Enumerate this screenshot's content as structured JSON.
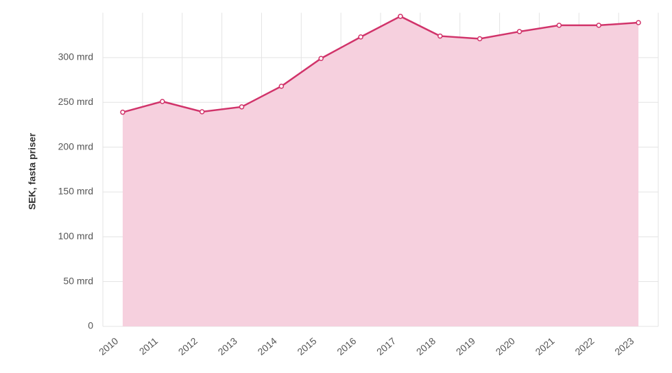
{
  "chart_data": {
    "type": "area",
    "y_label": "SEK, fasta priser",
    "categories": [
      "2010",
      "2011",
      "2012",
      "2013",
      "2014",
      "2015",
      "2016",
      "2017",
      "2018",
      "2019",
      "2020",
      "2021",
      "2022",
      "2023"
    ],
    "values": [
      239,
      251,
      239.5,
      245,
      268,
      299,
      323,
      346,
      324,
      321,
      329,
      336,
      336,
      339
    ],
    "color": "#d1336a",
    "fill_color": "#f6d0de",
    "ylim": [
      0,
      350
    ],
    "yticks": [
      0,
      {
        "value": 50,
        "label": "50 mrd"
      },
      {
        "value": 100,
        "label": "100 mrd"
      },
      {
        "value": 150,
        "label": "150 mrd"
      },
      {
        "value": 200,
        "label": "200 mrd"
      },
      {
        "value": 250,
        "label": "250 mrd"
      },
      {
        "value": 300,
        "label": "300 mrd"
      }
    ],
    "grid": true
  }
}
